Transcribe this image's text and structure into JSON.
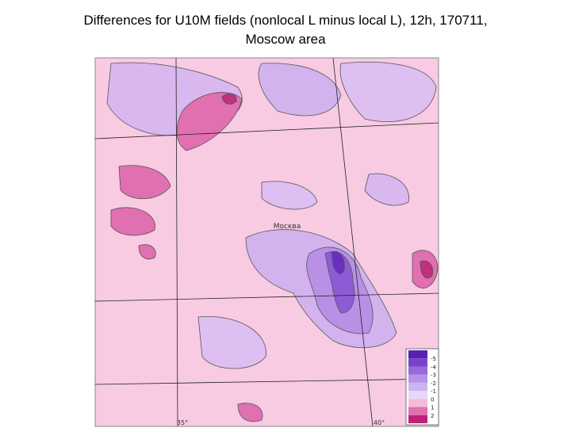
{
  "header": {
    "title_line1": "Differences for U10M fields (nonlocal L minus local L), 12h, 170711,",
    "title_line2": "Moscow area"
  },
  "map": {
    "city": "Москва",
    "lon_labels": [
      "35°",
      "40°"
    ],
    "legend": {
      "labels": [
        "-5",
        "-4",
        "-3",
        "-2",
        "-1",
        "0",
        "1",
        "2"
      ]
    }
  }
}
